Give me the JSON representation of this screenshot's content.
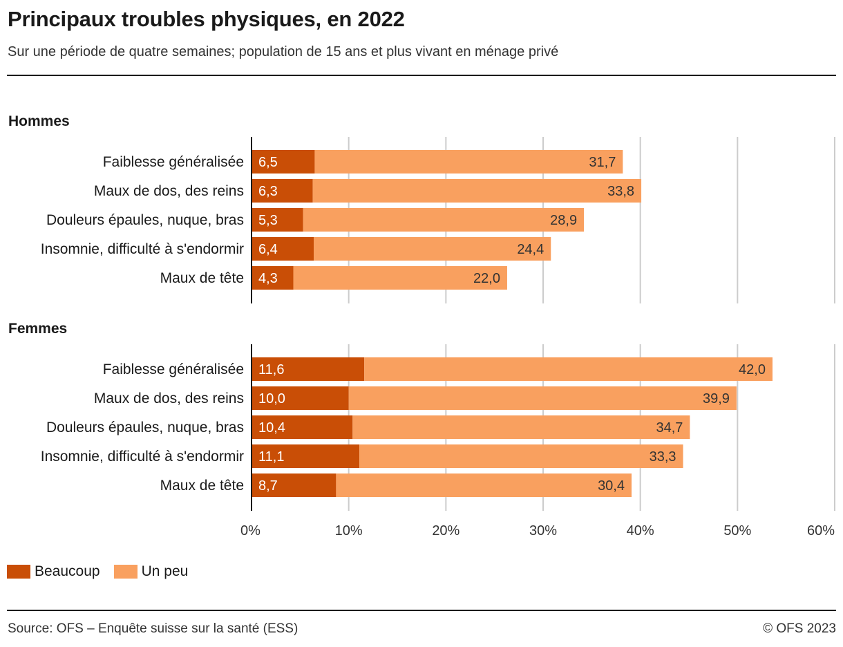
{
  "header": {
    "title": "Principaux troubles physiques, en 2022",
    "subtitle": "Sur une période de quatre semaines; population de 15 ans et plus vivant en ménage privé"
  },
  "colors": {
    "beaucoup": "#c94e06",
    "un_peu": "#f9a05f",
    "grid": "#cccccc",
    "axis": "#1a1a1a"
  },
  "chart_data": {
    "type": "bar",
    "orientation": "horizontal",
    "stacked": true,
    "xlim": [
      0,
      60
    ],
    "xticks": [
      "0%",
      "10%",
      "20%",
      "30%",
      "40%",
      "50%",
      "60%"
    ],
    "grid": true,
    "legend_position": "bottom-left",
    "categories": [
      "Faiblesse généralisée",
      "Maux de dos, des reins",
      "Douleurs épaules, nuque, bras",
      "Insomnie, difficulté à s'endormir",
      "Maux de tête"
    ],
    "panels": [
      {
        "title": "Hommes",
        "series": [
          {
            "name": "Beaucoup",
            "values": [
              6.5,
              6.3,
              5.3,
              6.4,
              4.3
            ],
            "labels": [
              "6,5",
              "6,3",
              "5,3",
              "6,4",
              "4,3"
            ]
          },
          {
            "name": "Un peu",
            "values": [
              31.7,
              33.8,
              28.9,
              24.4,
              22.0
            ],
            "labels": [
              "31,7",
              "33,8",
              "28,9",
              "24,4",
              "22,0"
            ]
          }
        ]
      },
      {
        "title": "Femmes",
        "series": [
          {
            "name": "Beaucoup",
            "values": [
              11.6,
              10.0,
              10.4,
              11.1,
              8.7
            ],
            "labels": [
              "11,6",
              "10,0",
              "10,4",
              "11,1",
              "8,7"
            ]
          },
          {
            "name": "Un peu",
            "values": [
              42.0,
              39.9,
              34.7,
              33.3,
              30.4
            ],
            "labels": [
              "42,0",
              "39,9",
              "34,7",
              "33,3",
              "30,4"
            ]
          }
        ]
      }
    ]
  },
  "legend": {
    "beaucoup_label": "Beaucoup",
    "un_peu_label": "Un peu"
  },
  "footer": {
    "source": "Source: OFS – Enquête suisse sur la santé (ESS)",
    "copyright": "© OFS 2023"
  }
}
